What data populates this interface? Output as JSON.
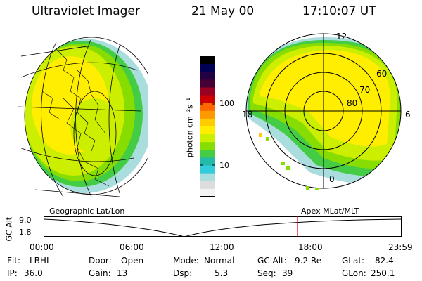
{
  "header": {
    "instrument": "Ultraviolet Imager",
    "date": "21 May 00",
    "time": "17:10:07 UT"
  },
  "colorbar": {
    "unit_label": "photon cm⁻²s⁻¹",
    "ticks": [
      "100",
      "10"
    ],
    "colors": [
      "#000000",
      "#000055",
      "#220044",
      "#440033",
      "#990022",
      "#cc0000",
      "#ff6600",
      "#ff9900",
      "#ffcc00",
      "#ffee00",
      "#ccee00",
      "#88dd00",
      "#44cc44",
      "#22bbaa",
      "#33ccdd",
      "#aadddd",
      "#dddddd",
      "#f4f4f4"
    ]
  },
  "polar": {
    "lat_labels": [
      "60",
      "70",
      "80"
    ],
    "mlt_labels": [
      "12",
      "18",
      "6",
      "0"
    ]
  },
  "timeline": {
    "left_label": "Geographic Lat/Lon",
    "right_label": "Apex MLat/MLT",
    "axis_label": "GC Alt",
    "y_ticks": [
      "9.0",
      "1.8"
    ],
    "x_ticks": [
      "00:00",
      "06:00",
      "12:00",
      "18:00",
      "23:59"
    ],
    "marker_color": "#dd0000"
  },
  "info": {
    "flt_label": "Flt:",
    "flt_value": "LBHL",
    "ip_label": "IP:",
    "ip_value": "36.0",
    "door_label": "Door:",
    "door_value": "Open",
    "gain_label": "Gain:",
    "gain_value": "13",
    "mode_label": "Mode:",
    "mode_value": "Normal",
    "dsp_label": "Dsp:",
    "dsp_value": "5.3",
    "gcalt_label": "GC Alt:",
    "gcalt_value": "9.2 Re",
    "seq_label": "Seq:",
    "seq_value": "39",
    "glat_label": "GLat:",
    "glat_value": "82.4",
    "glon_label": "GLon:",
    "glon_value": "250.1"
  }
}
